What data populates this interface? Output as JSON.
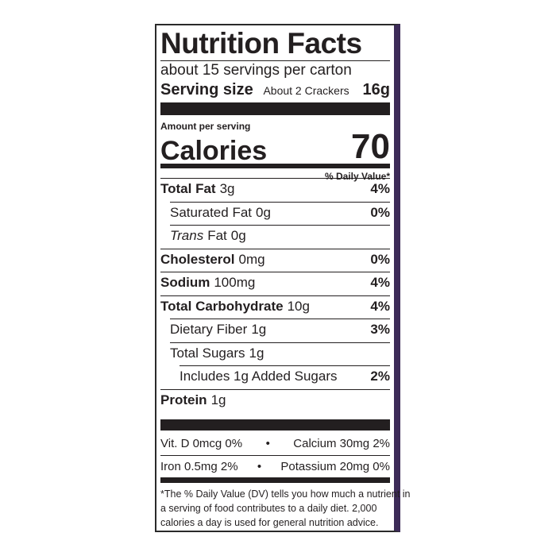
{
  "header": {
    "title": "Nutrition Facts",
    "servings": "about 15 servings per carton",
    "serving_size_label": "Serving size",
    "serving_size_desc": "About 2 Crackers",
    "serving_size_amount": "16g"
  },
  "calories": {
    "amount_per_serving": "Amount per serving",
    "label": "Calories",
    "value": "70",
    "daily_value_header": "% Daily Value*"
  },
  "nutrients": [
    {
      "name": "Total Fat",
      "amount": "3g",
      "dv": "4%"
    },
    {
      "name": "Saturated Fat",
      "amount": "0g",
      "dv": "0%"
    },
    {
      "name": "Trans",
      "rest": "Fat",
      "amount": "0g"
    },
    {
      "name": "Cholesterol",
      "amount": "0mg",
      "dv": "0%"
    },
    {
      "name": "Sodium",
      "amount": "100mg",
      "dv": "4%"
    },
    {
      "name": "Total Carbohydrate",
      "amount": "10g",
      "dv": "4%"
    },
    {
      "name": "Dietary Fiber",
      "amount": "1g",
      "dv": "3%"
    },
    {
      "name": "Total Sugars",
      "amount": "1g"
    },
    {
      "name": "Includes 1g Added Sugars",
      "dv": "2%"
    },
    {
      "name": "Protein",
      "amount": "1g"
    }
  ],
  "vitamins": [
    [
      "Vit. D 0mcg 0%",
      "•",
      "Calcium 30mg 2%"
    ],
    [
      "Iron 0.5mg 2%",
      "•",
      "Potassium 20mg 0%"
    ]
  ],
  "footnote": [
    "*The % Daily Value (DV) tells you how much a nutrient in",
    "a serving of food contributes to a daily diet. 2,000",
    "calories a day is used for general nutrition advice."
  ]
}
